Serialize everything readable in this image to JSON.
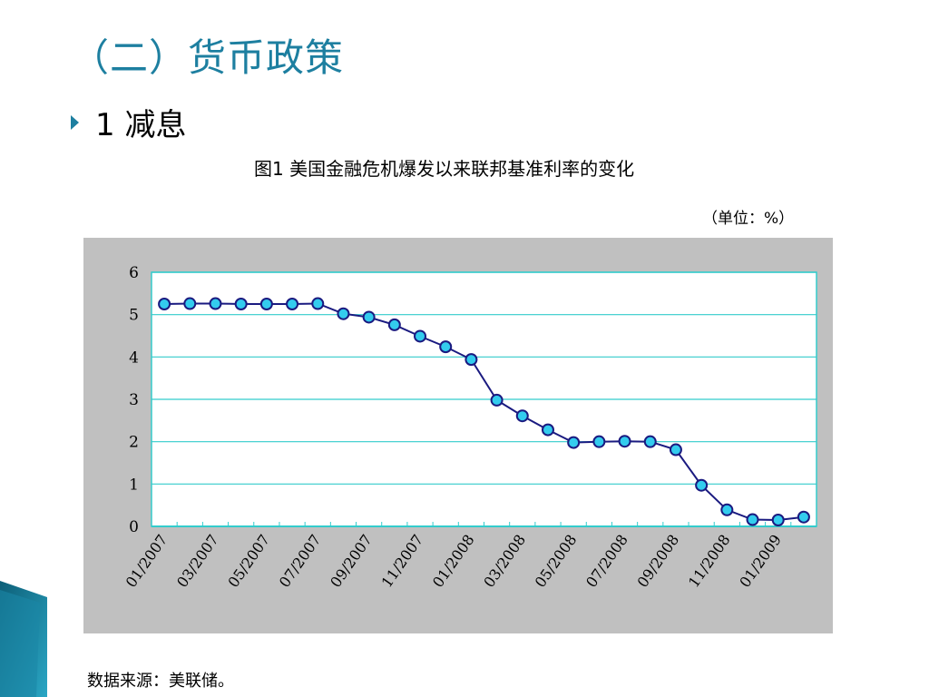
{
  "slide": {
    "title": "（二）货币政策",
    "bullet": "1 减息",
    "caption": "图1  美国金融危机爆发以来联邦基准利率的变化",
    "unit": "（单位：%）",
    "source": "数据来源：美联储。"
  },
  "colors": {
    "title": "#1d7fa0",
    "panel_bg": "#c0c0c0",
    "plot_bg": "#ffffff",
    "gridline": "#33cccc",
    "line": "#1a1a80",
    "marker_fill": "#33ccee",
    "marker_stroke": "#1a1a80"
  },
  "chart_data": {
    "type": "line",
    "title": "",
    "xlabel": "",
    "ylabel": "",
    "ylim": [
      0,
      6
    ],
    "yticks": [
      "0",
      "1",
      "2",
      "3",
      "4",
      "5",
      "6"
    ],
    "xtick_labels": [
      "01/2007",
      "03/2007",
      "05/2007",
      "07/2007",
      "09/2007",
      "11/2007",
      "01/2008",
      "03/2008",
      "05/2008",
      "07/2008",
      "09/2008",
      "11/2008",
      "01/2009"
    ],
    "grid": "horizontal",
    "values": [
      5.25,
      5.26,
      5.26,
      5.25,
      5.25,
      5.25,
      5.26,
      5.02,
      4.94,
      4.76,
      4.49,
      4.24,
      3.94,
      2.98,
      2.61,
      2.28,
      1.98,
      2.0,
      2.01,
      2.0,
      1.81,
      0.97,
      0.39,
      0.16,
      0.15,
      0.22
    ]
  }
}
